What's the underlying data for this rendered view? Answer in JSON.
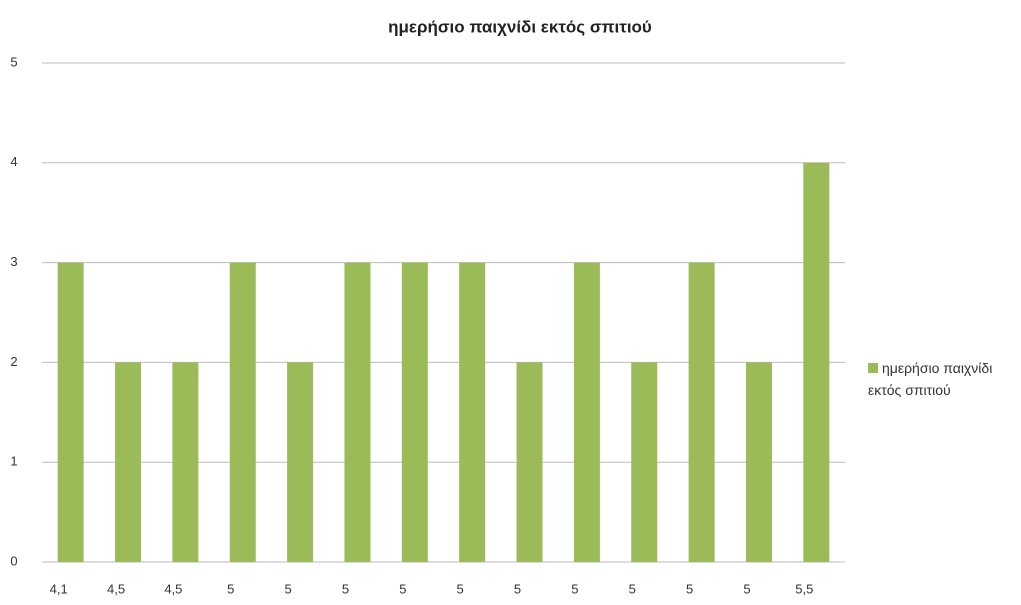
{
  "chart_data": {
    "type": "bar",
    "title": "ημερήσιο παιχνίδι εκτός σπιτιού",
    "categories": [
      "4,1",
      "4,5",
      "4,5",
      "5",
      "5",
      "5",
      "5",
      "5",
      "5",
      "5",
      "5",
      "5",
      "5",
      "5,5"
    ],
    "series": [
      {
        "name": "ημερήσιο παιχνίδι εκτός σπιτιού",
        "color": "#9bbb59",
        "values": [
          3,
          2,
          2,
          3,
          2,
          3,
          3,
          3,
          2,
          3,
          2,
          3,
          2,
          4
        ]
      }
    ],
    "ylim": [
      0,
      5
    ],
    "yticks": [
      0,
      1,
      2,
      3,
      4,
      5
    ],
    "grid": true,
    "legend": "right"
  }
}
